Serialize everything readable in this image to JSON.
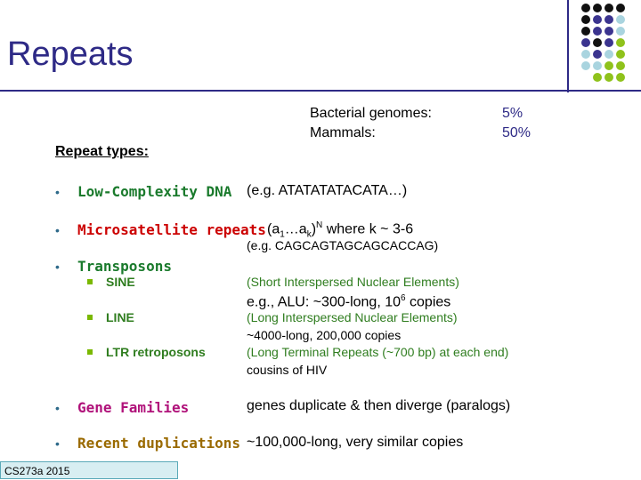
{
  "slide": {
    "title": "Repeats",
    "footer": "CS273a 2015"
  },
  "stats": [
    {
      "label": "Bacterial genomes:",
      "value": "5%"
    },
    {
      "label": "Mammals:",
      "value": "50%"
    }
  ],
  "repeat_types_heading": "Repeat types:",
  "items": {
    "low_complexity": {
      "name": "Low-Complexity DNA",
      "desc": "(e.g. ATATATATACATA…)",
      "color": "#1a7a2c"
    },
    "microsatellite": {
      "name": "Microsatellite repeats",
      "formula_base": "(a",
      "sub1": "1",
      "formula_mid": "…a",
      "subk": "k",
      "formula_close": ")",
      "sup": "N",
      "formula_rest": " where k ~ 3-6",
      "example": "(e.g. CAGCAGTAGCAGCACCAG)",
      "color": "#cc0000"
    },
    "transposons": {
      "name": "Transposons",
      "color": "#1a7a2c",
      "sine": {
        "label": "SINE",
        "desc": "(Short Interspersed Nuclear Elements)",
        "detail_pre": "e.g., ALU: ~300-long, 10",
        "detail_sup": "6",
        "detail_post": " copies"
      },
      "line": {
        "label": "LINE",
        "desc": "(Long Interspersed Nuclear Elements)",
        "detail": "~4000-long, 200,000 copies"
      },
      "ltr": {
        "label": "LTR retroposons",
        "desc": "(Long Terminal Repeats (~700 bp) at each end)",
        "detail": "cousins of HIV"
      }
    },
    "gene_families": {
      "name": "Gene Families",
      "desc": "genes duplicate & then diverge (paralogs)",
      "color": "#b0127a"
    },
    "recent_dups": {
      "name": "Recent duplications",
      "desc": "~100,000-long, very similar copies",
      "color": "#9a6a00"
    }
  },
  "bullet_char": "•",
  "dot_colors": {
    "black": "#111111",
    "purple": "#3b348f",
    "lightblue": "#a9d4df",
    "green": "#8fc21b"
  }
}
